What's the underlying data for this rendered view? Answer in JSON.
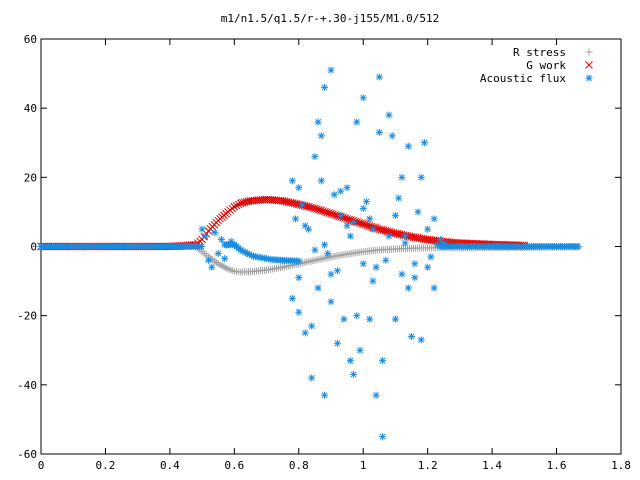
{
  "chart_data": {
    "type": "scatter",
    "title": "m1/n1.5/q1.5/r-+.30-j155/M1.0/512",
    "xlabel": "",
    "ylabel": "",
    "xlim": [
      0,
      1.8
    ],
    "ylim": [
      -60,
      60
    ],
    "xticks": [
      "0",
      "0.2",
      "0.4",
      "0.6",
      "0.8",
      "1",
      "1.2",
      "1.4",
      "1.6",
      "1.8"
    ],
    "yticks": [
      "-60",
      "-40",
      "-20",
      "0",
      "20",
      "40",
      "60"
    ],
    "grid": false,
    "legend_position": "top-right",
    "series": [
      {
        "name": "R stress",
        "marker": "plus",
        "color": "#a0a0a0",
        "x": [
          0.0,
          0.1,
          0.2,
          0.3,
          0.4,
          0.48,
          0.5,
          0.52,
          0.55,
          0.58,
          0.6,
          0.62,
          0.65,
          0.7,
          0.75,
          0.8,
          0.85,
          0.9,
          0.95,
          1.0,
          1.05,
          1.1,
          1.15,
          1.2,
          1.25,
          1.3,
          1.4,
          1.5,
          1.6,
          1.67
        ],
        "y": [
          0.0,
          0.0,
          0.0,
          0.0,
          0.0,
          0.0,
          -1.5,
          -3.0,
          -5.0,
          -6.5,
          -7.2,
          -7.4,
          -7.3,
          -6.8,
          -6.0,
          -5.0,
          -4.0,
          -3.0,
          -2.2,
          -1.5,
          -1.0,
          -0.7,
          -0.5,
          -0.4,
          -0.4,
          -0.4,
          -0.3,
          -0.3,
          -0.2,
          -0.1
        ]
      },
      {
        "name": "G work",
        "marker": "cross",
        "color": "#e00000",
        "x": [
          0.0,
          0.1,
          0.2,
          0.3,
          0.4,
          0.48,
          0.5,
          0.52,
          0.55,
          0.58,
          0.6,
          0.62,
          0.65,
          0.7,
          0.75,
          0.8,
          0.85,
          0.9,
          0.95,
          1.0,
          1.05,
          1.1,
          1.15,
          1.2,
          1.25,
          1.3,
          1.4,
          1.5
        ],
        "y": [
          0.0,
          0.0,
          0.0,
          0.0,
          0.0,
          0.5,
          2.0,
          4.5,
          7.5,
          10.0,
          11.5,
          12.5,
          13.2,
          13.6,
          13.2,
          12.2,
          11.0,
          9.5,
          8.0,
          6.5,
          5.0,
          3.8,
          2.8,
          2.0,
          1.4,
          1.0,
          0.6,
          0.3
        ]
      },
      {
        "name": "Acoustic flux",
        "marker": "star",
        "color": "#1a8ce0",
        "x": [
          0.0,
          0.05,
          0.1,
          0.15,
          0.2,
          0.25,
          0.3,
          0.35,
          0.4,
          0.45,
          0.49,
          0.5,
          0.51,
          0.52,
          0.53,
          0.54,
          0.55,
          0.56,
          0.57,
          0.58,
          0.59,
          0.6,
          0.62,
          0.64,
          0.66,
          0.68,
          0.7,
          0.72,
          0.75,
          0.78,
          0.78,
          0.79,
          0.8,
          0.8,
          0.81,
          0.82,
          0.83,
          0.84,
          0.85,
          0.86,
          0.86,
          0.87,
          0.88,
          0.88,
          0.89,
          0.9,
          0.9,
          0.91,
          0.92,
          0.93,
          0.94,
          0.95,
          0.96,
          0.97,
          0.97,
          0.98,
          0.99,
          1.0,
          1.0,
          1.01,
          1.02,
          1.03,
          1.04,
          1.05,
          1.05,
          1.06,
          1.07,
          1.08,
          1.09,
          1.1,
          1.11,
          1.12,
          1.13,
          1.14,
          1.15,
          1.16,
          1.17,
          1.18,
          1.19,
          1.2,
          1.21,
          1.22,
          1.23,
          1.24,
          1.25,
          1.3,
          1.35,
          1.4,
          1.45,
          1.5,
          1.55,
          1.6,
          1.65,
          1.67,
          0.84,
          0.88,
          0.93,
          0.98,
          1.02,
          1.06,
          1.1,
          1.14,
          1.18,
          1.22,
          0.82,
          0.9,
          0.96,
          1.04,
          1.12,
          0.8,
          0.87,
          0.92,
          1.0,
          1.08,
          1.16,
          1.2,
          0.85,
          0.95,
          1.03,
          1.13
        ],
        "y": [
          0.0,
          0.0,
          0.0,
          0.0,
          0.0,
          0.0,
          0.0,
          0.0,
          0.0,
          0.0,
          0.5,
          5.0,
          3.0,
          -4.0,
          -6.0,
          4.0,
          -2.0,
          2.0,
          -3.5,
          0.5,
          1.5,
          0.5,
          -1.0,
          -2.0,
          -2.8,
          -3.2,
          -3.5,
          -3.8,
          -4.0,
          19.0,
          -15.0,
          8.0,
          -9.0,
          -19.0,
          12.0,
          -25.0,
          5.0,
          -38.0,
          26.0,
          -12.0,
          36.0,
          32.0,
          46.0,
          -43.0,
          -2.0,
          51.0,
          -8.0,
          15.0,
          -28.0,
          9.0,
          -21.0,
          17.0,
          -33.0,
          7.0,
          -37.0,
          36.0,
          -30.0,
          43.0,
          -5.0,
          13.0,
          -21.0,
          5.0,
          -43.0,
          33.0,
          49.0,
          -55.0,
          -4.0,
          38.0,
          32.0,
          -21.0,
          14.0,
          -8.0,
          3.0,
          29.0,
          -26.0,
          -5.0,
          10.0,
          20.0,
          30.0,
          5.0,
          -3.0,
          -12.0,
          0.5,
          2.0,
          1.0,
          0.5,
          0.2,
          0.1,
          0.0,
          0.0,
          0.0,
          0.0,
          0.0,
          0.0,
          -23.0,
          0.5,
          16.0,
          -20.0,
          8.0,
          -33.0,
          9.0,
          -12.0,
          -27.0,
          8.0,
          6.0,
          -16.0,
          3.0,
          -6.0,
          20.0,
          17.0,
          19.0,
          -7.0,
          11.0,
          3.0,
          -9.0,
          -6.0,
          -1.0,
          6.0,
          -10.0,
          1.0
        ]
      }
    ]
  }
}
